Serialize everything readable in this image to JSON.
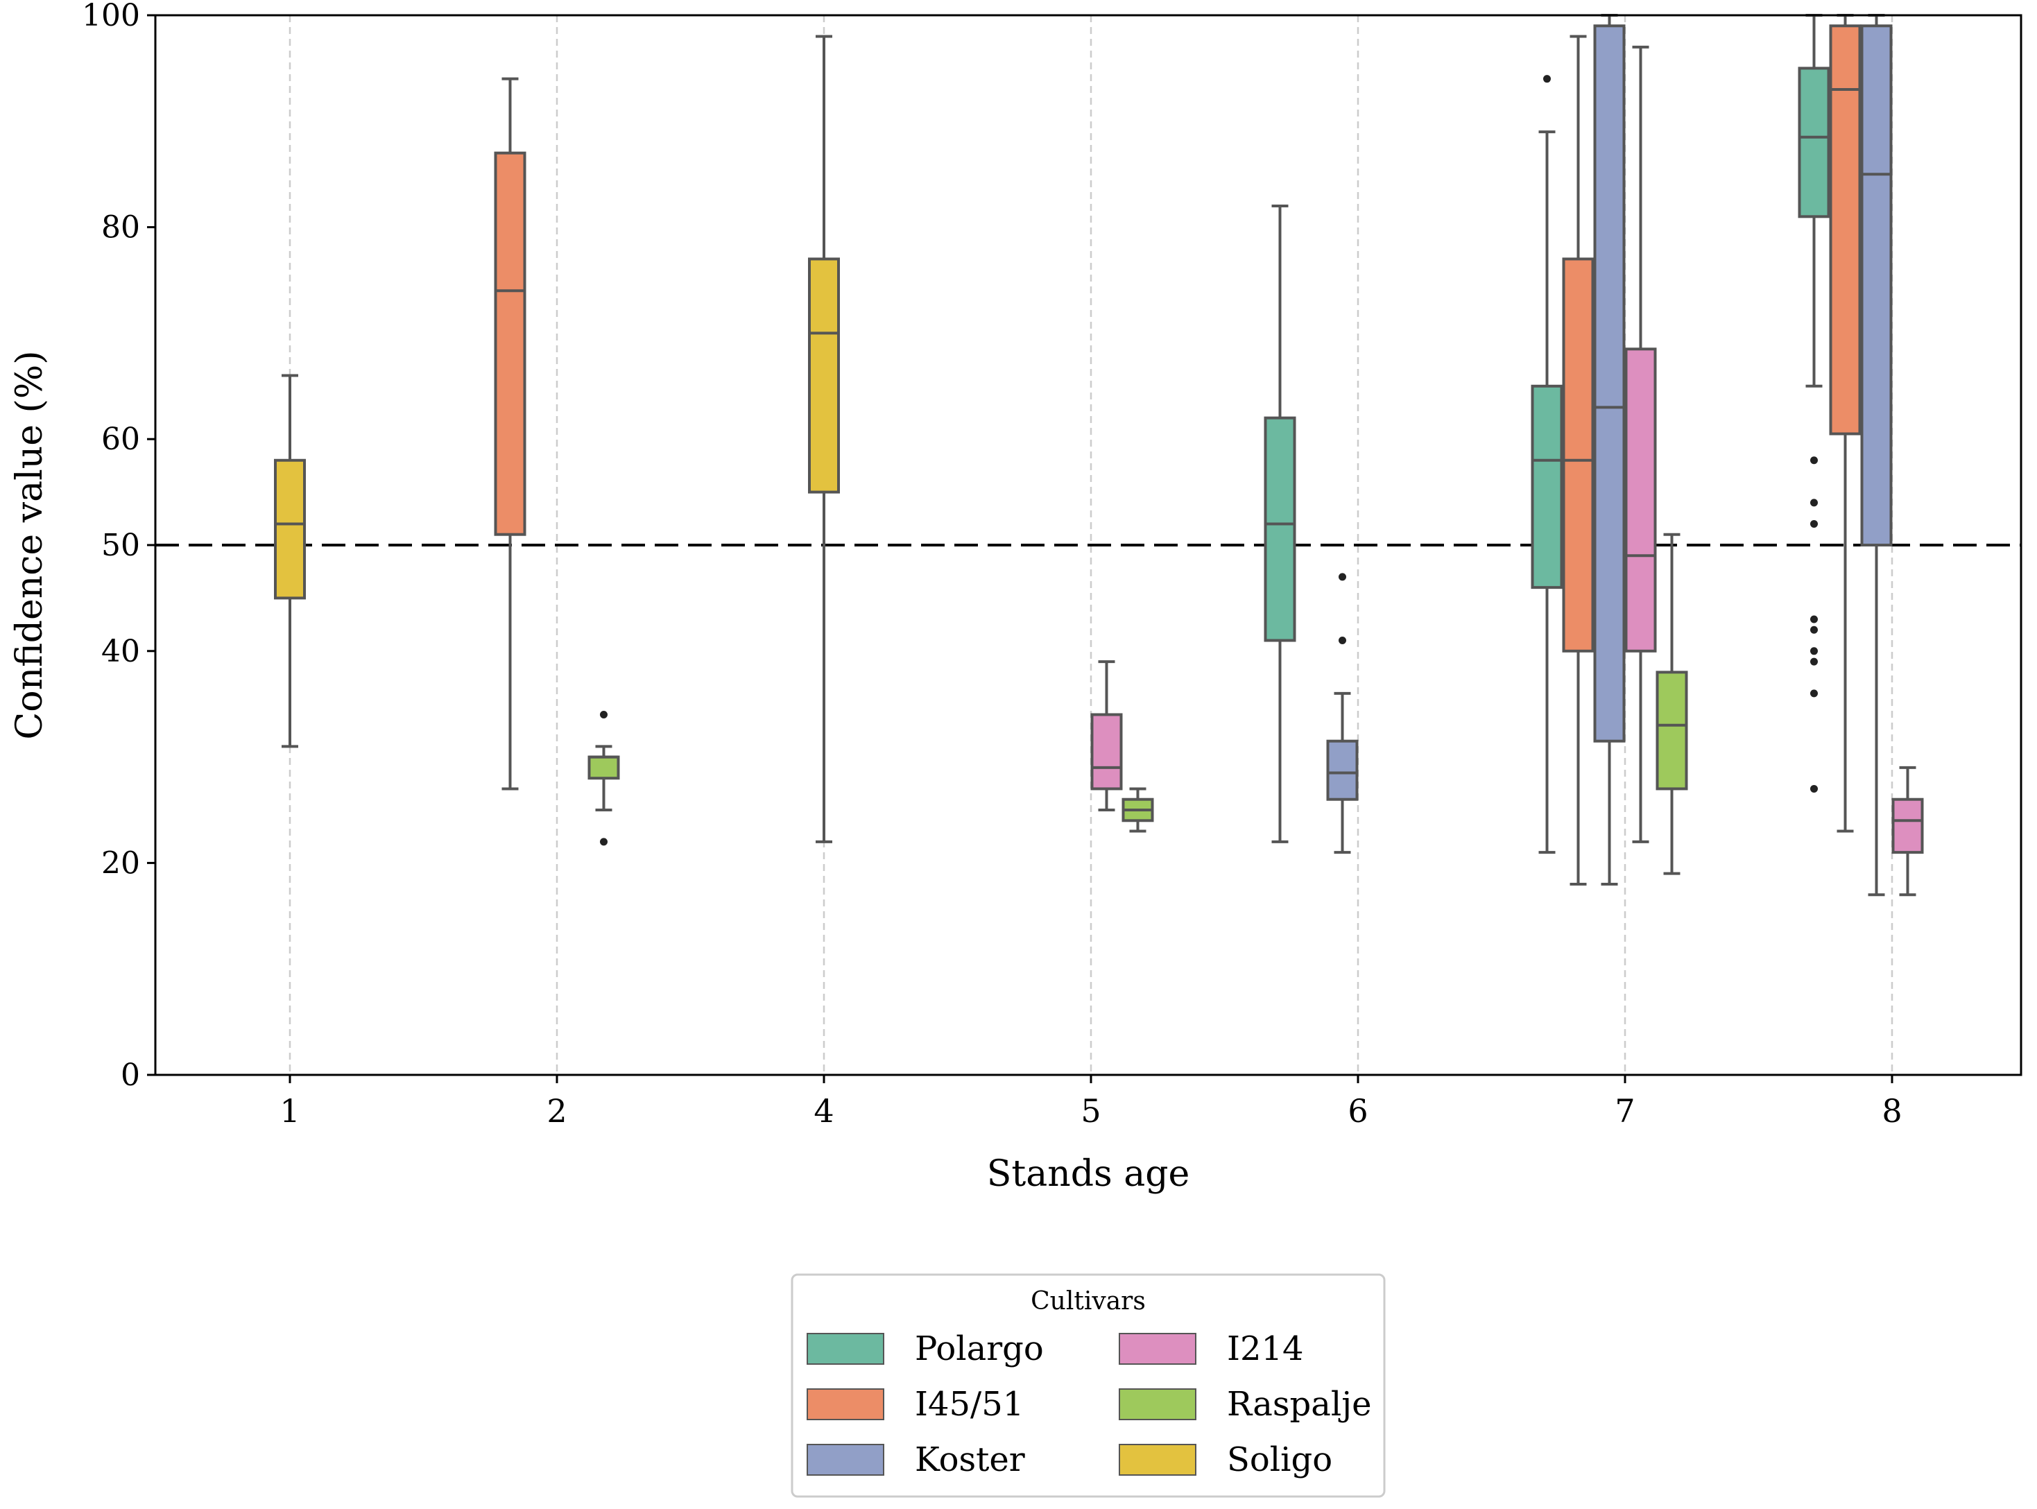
{
  "chart_data": {
    "type": "box",
    "xlabel": "Stands age",
    "ylabel": "Confidence value (%)",
    "categories": [
      "1",
      "2",
      "4",
      "5",
      "6",
      "7",
      "8"
    ],
    "ylim": [
      0,
      100
    ],
    "yticks": [
      0,
      20,
      40,
      50,
      60,
      80,
      100
    ],
    "reference_line": {
      "y": 50,
      "style": "dashed",
      "color": "#000000"
    },
    "grid": "vertical dashed at each category",
    "legend": {
      "title": "Cultivars",
      "placement": "below chart, centered, two columns",
      "entries": [
        {
          "name": "Polargo",
          "color": "#6cb9a0"
        },
        {
          "name": "I45/51",
          "color": "#ec8d67"
        },
        {
          "name": "Koster",
          "color": "#919fc7"
        },
        {
          "name": "I214",
          "color": "#dd8fbf"
        },
        {
          "name": "Raspalje",
          "color": "#9ec95c"
        },
        {
          "name": "Soligo",
          "color": "#e3c23f"
        }
      ]
    },
    "series_order": [
      "Polargo",
      "I45/51",
      "Koster",
      "I214",
      "Raspalje",
      "Soligo"
    ],
    "boxes": [
      {
        "category": "1",
        "series": "Soligo",
        "whisker_low": 31,
        "q1": 45,
        "median": 52,
        "q3": 58,
        "whisker_high": 66,
        "outliers": []
      },
      {
        "category": "2",
        "series": "I45/51",
        "whisker_low": 27,
        "q1": 51,
        "median": 74,
        "q3": 87,
        "whisker_high": 94,
        "outliers": []
      },
      {
        "category": "2",
        "series": "Raspalje",
        "whisker_low": 25,
        "q1": 28,
        "median": 30,
        "q3": 30,
        "whisker_high": 31,
        "outliers": [
          34,
          22
        ]
      },
      {
        "category": "4",
        "series": "Soligo",
        "whisker_low": 22,
        "q1": 55,
        "median": 70,
        "q3": 77,
        "whisker_high": 98,
        "outliers": []
      },
      {
        "category": "5",
        "series": "I214",
        "whisker_low": 25,
        "q1": 27,
        "median": 29,
        "q3": 34,
        "whisker_high": 39,
        "outliers": []
      },
      {
        "category": "5",
        "series": "Raspalje",
        "whisker_low": 23,
        "q1": 24,
        "median": 25,
        "q3": 26,
        "whisker_high": 27,
        "outliers": []
      },
      {
        "category": "6",
        "series": "Polargo",
        "whisker_low": 22,
        "q1": 41,
        "median": 52,
        "q3": 62,
        "whisker_high": 82,
        "outliers": []
      },
      {
        "category": "6",
        "series": "Koster",
        "whisker_low": 21,
        "q1": 26,
        "median": 28.5,
        "q3": 31.5,
        "whisker_high": 36,
        "outliers": [
          47,
          41
        ]
      },
      {
        "category": "7",
        "series": "Polargo",
        "whisker_low": 21,
        "q1": 46,
        "median": 58,
        "q3": 65,
        "whisker_high": 89,
        "outliers": [
          94
        ]
      },
      {
        "category": "7",
        "series": "I45/51",
        "whisker_low": 18,
        "q1": 40,
        "median": 58,
        "q3": 77,
        "whisker_high": 98,
        "outliers": []
      },
      {
        "category": "7",
        "series": "Koster",
        "whisker_low": 18,
        "q1": 31.5,
        "median": 63,
        "q3": 99,
        "whisker_high": 100,
        "outliers": []
      },
      {
        "category": "7",
        "series": "I214",
        "whisker_low": 22,
        "q1": 40,
        "median": 49,
        "q3": 68.5,
        "whisker_high": 97,
        "outliers": []
      },
      {
        "category": "7",
        "series": "Raspalje",
        "whisker_low": 19,
        "q1": 27,
        "median": 33,
        "q3": 38,
        "whisker_high": 51,
        "outliers": []
      },
      {
        "category": "8",
        "series": "Polargo",
        "whisker_low": 65,
        "q1": 81,
        "median": 88.5,
        "q3": 95,
        "whisker_high": 100,
        "outliers": [
          58,
          54,
          52,
          43,
          42,
          40,
          39,
          36,
          27
        ]
      },
      {
        "category": "8",
        "series": "I45/51",
        "whisker_low": 23,
        "q1": 60.5,
        "median": 93,
        "q3": 99,
        "whisker_high": 100,
        "outliers": []
      },
      {
        "category": "8",
        "series": "Koster",
        "whisker_low": 17,
        "q1": 50,
        "median": 85,
        "q3": 99,
        "whisker_high": 100,
        "outliers": []
      },
      {
        "category": "8",
        "series": "I214",
        "whisker_low": 17,
        "q1": 21,
        "median": 24,
        "q3": 26,
        "whisker_high": 29,
        "outliers": []
      }
    ]
  }
}
